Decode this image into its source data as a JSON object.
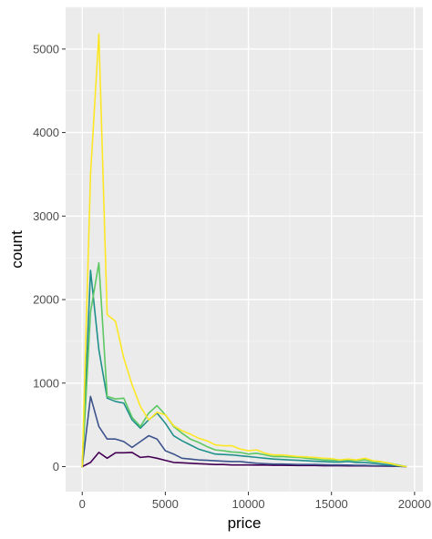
{
  "chart_data": {
    "type": "line",
    "title": "",
    "xlabel": "price",
    "ylabel": "count",
    "xlim": [
      -1000,
      20500
    ],
    "ylim": [
      -300,
      5500
    ],
    "x_ticks": [
      0,
      5000,
      10000,
      15000,
      20000
    ],
    "x_tick_labels": [
      "0",
      "5000",
      "10000",
      "15000",
      "20000"
    ],
    "y_ticks": [
      0,
      1000,
      2000,
      3000,
      4000,
      5000
    ],
    "y_tick_labels": [
      "0",
      "1000",
      "2000",
      "3000",
      "4000",
      "5000"
    ],
    "grid": true,
    "legend": "none",
    "x": [
      0,
      500,
      1000,
      1500,
      2000,
      2500,
      3000,
      3500,
      4000,
      4500,
      5000,
      5500,
      6000,
      6500,
      7000,
      7500,
      8000,
      8500,
      9000,
      9500,
      10000,
      10500,
      11000,
      11500,
      12000,
      12500,
      13000,
      13500,
      14000,
      14500,
      15000,
      15500,
      16000,
      16500,
      17000,
      17500,
      18000,
      18500,
      19000,
      19500
    ],
    "series": [
      {
        "color": "#440154",
        "values": [
          0,
          50,
          170,
          100,
          165,
          165,
          170,
          110,
          120,
          100,
          75,
          50,
          45,
          40,
          35,
          30,
          25,
          25,
          20,
          20,
          20,
          18,
          18,
          15,
          15,
          14,
          12,
          12,
          12,
          10,
          10,
          10,
          9,
          8,
          8,
          7,
          6,
          5,
          3,
          0
        ]
      },
      {
        "color": "#3B528B",
        "values": [
          0,
          840,
          480,
          330,
          330,
          300,
          230,
          300,
          370,
          330,
          190,
          150,
          100,
          90,
          80,
          75,
          70,
          65,
          60,
          60,
          50,
          40,
          35,
          30,
          30,
          28,
          25,
          25,
          25,
          22,
          20,
          20,
          18,
          15,
          15,
          12,
          10,
          8,
          5,
          0
        ]
      },
      {
        "color": "#21908C",
        "values": [
          0,
          2350,
          1400,
          820,
          780,
          760,
          560,
          460,
          560,
          640,
          520,
          370,
          310,
          260,
          210,
          180,
          150,
          145,
          140,
          130,
          120,
          110,
          100,
          90,
          85,
          80,
          75,
          70,
          65,
          60,
          55,
          55,
          60,
          50,
          50,
          40,
          30,
          20,
          10,
          0
        ]
      },
      {
        "color": "#5DC863",
        "values": [
          0,
          1850,
          2440,
          840,
          810,
          820,
          590,
          480,
          640,
          730,
          620,
          480,
          400,
          330,
          290,
          240,
          200,
          190,
          175,
          170,
          150,
          160,
          140,
          120,
          120,
          115,
          110,
          100,
          90,
          80,
          75,
          75,
          80,
          70,
          80,
          60,
          55,
          40,
          20,
          0
        ]
      },
      {
        "color": "#FDE725",
        "values": [
          0,
          3500,
          5180,
          1820,
          1740,
          1300,
          980,
          720,
          560,
          650,
          620,
          490,
          430,
          390,
          340,
          310,
          260,
          250,
          250,
          210,
          190,
          200,
          160,
          140,
          140,
          130,
          120,
          115,
          110,
          100,
          95,
          80,
          90,
          80,
          100,
          70,
          60,
          40,
          15,
          0
        ]
      }
    ]
  }
}
